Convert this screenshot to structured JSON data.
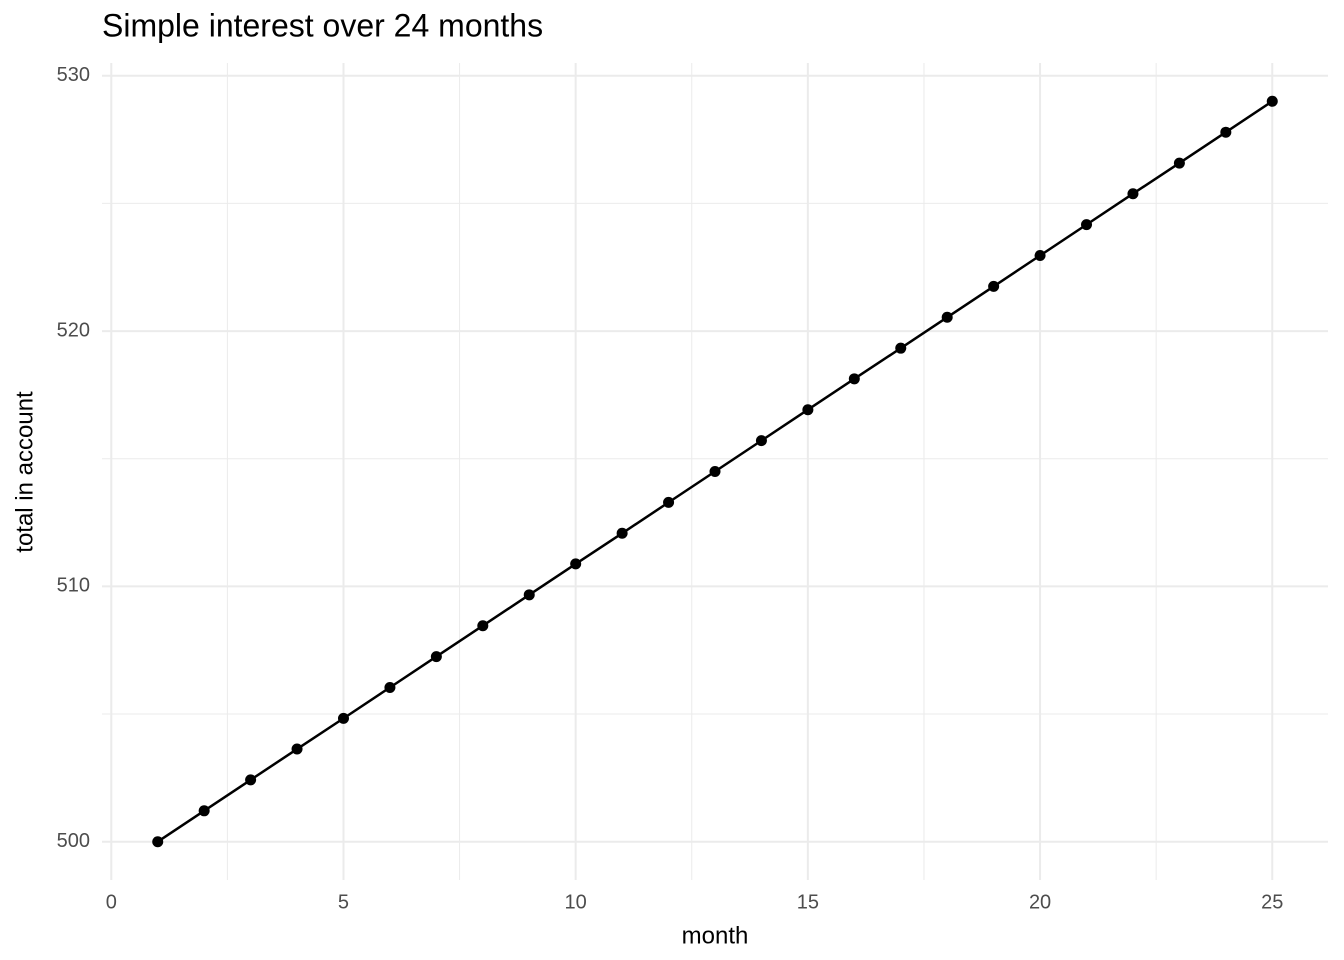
{
  "chart_data": {
    "type": "line",
    "title": "Simple interest over 24 months",
    "x_label": "month",
    "y_label": "total in account",
    "x": [
      1,
      2,
      3,
      4,
      5,
      6,
      7,
      8,
      9,
      10,
      11,
      12,
      13,
      14,
      15,
      16,
      17,
      18,
      19,
      20,
      21,
      22,
      23,
      24,
      25
    ],
    "series": [
      {
        "color": "#000000",
        "values": [
          500,
          501.21,
          502.42,
          503.63,
          504.83,
          506.04,
          507.25,
          508.46,
          509.67,
          510.88,
          512.08,
          513.29,
          514.5,
          515.71,
          516.92,
          518.13,
          519.33,
          520.54,
          521.75,
          522.96,
          524.17,
          525.38,
          526.58,
          527.79,
          529
        ]
      }
    ],
    "markers": true,
    "xlim": [
      -0.2,
      26.2
    ],
    "ylim": [
      498.5,
      530.5
    ],
    "xticks": [
      0,
      5,
      10,
      15,
      20,
      25
    ],
    "yticks": [
      500,
      510,
      520,
      530
    ],
    "x_minor_ticks": [
      2.5,
      7.5,
      12.5,
      17.5,
      22.5
    ],
    "y_minor_ticks": [
      505,
      515,
      525
    ],
    "grid": true
  }
}
